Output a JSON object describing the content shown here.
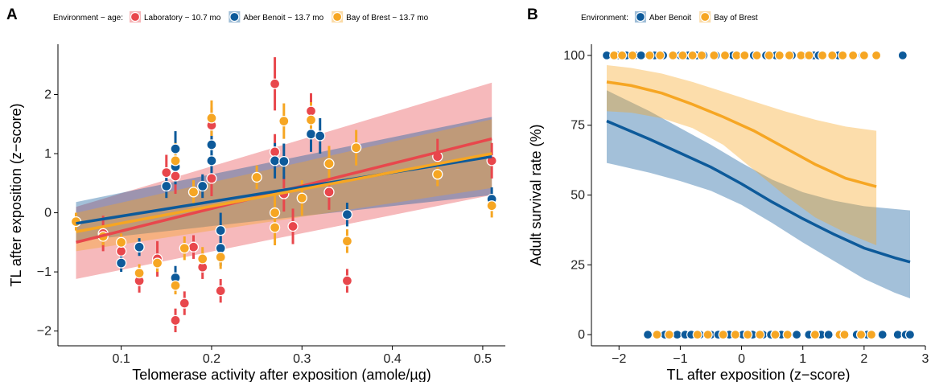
{
  "chart_data": [
    {
      "panel": "A",
      "type": "scatter",
      "xlabel": "Telomerase activity after exposition (amole/µg)",
      "ylabel": "TL after exposition (z−score)",
      "xlim": [
        0.03,
        0.525
      ],
      "ylim": [
        -2.25,
        2.85
      ],
      "xticks": [
        "0.1",
        "0.2",
        "0.3",
        "0.4",
        "0.5"
      ],
      "xtick_values": [
        0.1,
        0.2,
        0.3,
        0.4,
        0.5
      ],
      "yticks": [
        "−2",
        "−1",
        "0",
        "1",
        "2"
      ],
      "ytick_values": [
        -2,
        -1,
        0,
        1,
        2
      ],
      "grid": false,
      "legend": {
        "title": "Environment − age:",
        "placement": "top",
        "entries": [
          "Laboratory − 10.7 mo",
          "Aber Benoit − 13.7 mo",
          "Bay of Brest − 13.7 mo"
        ]
      },
      "series": [
        {
          "name": "Laboratory − 10.7 mo",
          "color": "#e8474c",
          "points": [
            {
              "x": 0.08,
              "y": -0.35,
              "e": 0.3
            },
            {
              "x": 0.1,
              "y": -0.65,
              "e": 0.3
            },
            {
              "x": 0.12,
              "y": -1.15,
              "e": 0.2
            },
            {
              "x": 0.14,
              "y": -0.78,
              "e": 0.3
            },
            {
              "x": 0.15,
              "y": 0.68,
              "e": 0.3
            },
            {
              "x": 0.16,
              "y": -1.82,
              "e": 0.2
            },
            {
              "x": 0.16,
              "y": 0.62,
              "e": 0.3
            },
            {
              "x": 0.17,
              "y": -1.53,
              "e": 0.2
            },
            {
              "x": 0.18,
              "y": -0.58,
              "e": 0.2
            },
            {
              "x": 0.19,
              "y": -0.92,
              "e": 0.2
            },
            {
              "x": 0.2,
              "y": 1.48,
              "e": 0.3
            },
            {
              "x": 0.2,
              "y": 0.58,
              "e": 0.3
            },
            {
              "x": 0.21,
              "y": -1.32,
              "e": 0.2
            },
            {
              "x": 0.27,
              "y": 2.18,
              "e": 0.45
            },
            {
              "x": 0.27,
              "y": 1.03,
              "e": 0.3
            },
            {
              "x": 0.28,
              "y": 0.32,
              "e": 0.3
            },
            {
              "x": 0.29,
              "y": -0.23,
              "e": 0.3
            },
            {
              "x": 0.31,
              "y": 1.72,
              "e": 0.3
            },
            {
              "x": 0.33,
              "y": 0.35,
              "e": 0.3
            },
            {
              "x": 0.35,
              "y": -1.15,
              "e": 0.2
            },
            {
              "x": 0.45,
              "y": 0.95,
              "e": 0.3
            },
            {
              "x": 0.51,
              "y": 0.88,
              "e": 0.3
            }
          ],
          "fit": {
            "x": [
              0.05,
              0.51
            ],
            "y": [
              -0.5,
              1.25
            ],
            "lower": [
              -1.12,
              0.3
            ],
            "upper": [
              0.1,
              2.2
            ]
          }
        },
        {
          "name": "Aber Benoit − 13.7 mo",
          "color": "#0d5a9a",
          "points": [
            {
              "x": 0.1,
              "y": -0.85,
              "e": 0.15
            },
            {
              "x": 0.12,
              "y": -0.58,
              "e": 0.15
            },
            {
              "x": 0.15,
              "y": 0.45,
              "e": 0.2
            },
            {
              "x": 0.16,
              "y": 1.08,
              "e": 0.3
            },
            {
              "x": 0.16,
              "y": 0.78,
              "e": 0.3
            },
            {
              "x": 0.16,
              "y": -1.1,
              "e": 0.2
            },
            {
              "x": 0.19,
              "y": 0.45,
              "e": 0.2
            },
            {
              "x": 0.2,
              "y": 1.15,
              "e": 0.3
            },
            {
              "x": 0.2,
              "y": 0.88,
              "e": 0.3
            },
            {
              "x": 0.21,
              "y": -0.3,
              "e": 0.3
            },
            {
              "x": 0.21,
              "y": -0.6,
              "e": 0.3
            },
            {
              "x": 0.27,
              "y": 0.88,
              "e": 0.3
            },
            {
              "x": 0.28,
              "y": 0.87,
              "e": 0.3
            },
            {
              "x": 0.31,
              "y": 1.33,
              "e": 0.3
            },
            {
              "x": 0.32,
              "y": 1.3,
              "e": 0.3
            },
            {
              "x": 0.35,
              "y": -0.03,
              "e": 0.2
            },
            {
              "x": 0.51,
              "y": 0.23,
              "e": 0.2
            }
          ],
          "fit": {
            "x": [
              0.05,
              0.51
            ],
            "y": [
              -0.18,
              0.95
            ],
            "lower": [
              -0.48,
              0.3
            ],
            "upper": [
              0.18,
              1.62
            ]
          }
        },
        {
          "name": "Bay of Brest − 13.7 mo",
          "color": "#f6a623",
          "points": [
            {
              "x": 0.05,
              "y": -0.15,
              "e": 0.15
            },
            {
              "x": 0.08,
              "y": -0.4,
              "e": 0.15
            },
            {
              "x": 0.1,
              "y": -0.5,
              "e": 0.15
            },
            {
              "x": 0.12,
              "y": -1.02,
              "e": 0.15
            },
            {
              "x": 0.14,
              "y": -0.85,
              "e": 0.15
            },
            {
              "x": 0.16,
              "y": -1.23,
              "e": 0.15
            },
            {
              "x": 0.16,
              "y": 0.88,
              "e": 0.3
            },
            {
              "x": 0.17,
              "y": -0.6,
              "e": 0.2
            },
            {
              "x": 0.18,
              "y": 0.35,
              "e": 0.2
            },
            {
              "x": 0.19,
              "y": -0.78,
              "e": 0.2
            },
            {
              "x": 0.2,
              "y": 1.6,
              "e": 0.3
            },
            {
              "x": 0.21,
              "y": -0.75,
              "e": 0.2
            },
            {
              "x": 0.25,
              "y": 0.6,
              "e": 0.2
            },
            {
              "x": 0.27,
              "y": 0.0,
              "e": 0.3
            },
            {
              "x": 0.27,
              "y": -0.25,
              "e": 0.3
            },
            {
              "x": 0.28,
              "y": 1.55,
              "e": 0.3
            },
            {
              "x": 0.3,
              "y": 0.25,
              "e": 0.3
            },
            {
              "x": 0.31,
              "y": 1.57,
              "e": 0.3
            },
            {
              "x": 0.33,
              "y": 0.83,
              "e": 0.3
            },
            {
              "x": 0.35,
              "y": -0.48,
              "e": 0.2
            },
            {
              "x": 0.36,
              "y": 1.1,
              "e": 0.3
            },
            {
              "x": 0.45,
              "y": 0.65,
              "e": 0.2
            },
            {
              "x": 0.51,
              "y": 0.12,
              "e": 0.2
            }
          ],
          "fit": {
            "x": [
              0.05,
              0.51
            ],
            "y": [
              -0.32,
              1.0
            ],
            "lower": [
              -0.65,
              0.42
            ],
            "upper": [
              0.0,
              1.58
            ]
          }
        }
      ]
    },
    {
      "panel": "B",
      "type": "line",
      "xlabel": "TL after exposition (z−score)",
      "ylabel": "Adult survival rate (%)",
      "xlim": [
        -2.45,
        3.0
      ],
      "ylim": [
        -4,
        104
      ],
      "xticks": [
        "−2",
        "−1",
        "0",
        "1",
        "2",
        "3"
      ],
      "xtick_values": [
        -2,
        -1,
        0,
        1,
        2,
        3
      ],
      "yticks": [
        "0",
        "25",
        "50",
        "75",
        "100"
      ],
      "ytick_values": [
        0,
        25,
        50,
        75,
        100
      ],
      "grid": false,
      "legend": {
        "title": "Environment:",
        "placement": "top",
        "entries": [
          "Aber Benoit",
          "Bay of Brest"
        ]
      },
      "series": [
        {
          "name": "Aber Benoit",
          "color": "#0d5a9a",
          "curve": {
            "x": [
              -2.2,
              -1.5,
              -1.0,
              -0.5,
              0.0,
              0.5,
              1.0,
              1.5,
              2.0,
              2.5,
              2.75
            ],
            "y": [
              76.5,
              70,
              65,
              60,
              54,
              47.5,
              41.5,
              36,
              31,
              27.5,
              26
            ],
            "lower": [
              61.5,
              58,
              55,
              51.5,
              46.5,
              40,
              33,
              26.5,
              20,
              15,
              13
            ],
            "upper": [
              87.5,
              80,
              74,
              68,
              61.5,
              55.5,
              51,
              48,
              46,
              45,
              44.5
            ]
          },
          "survived_x": [
            -2.2,
            -2.0,
            -1.88,
            -1.74,
            -1.64,
            -1.42,
            -1.28,
            -1.0,
            -0.87,
            -0.73,
            -0.62,
            -0.42,
            -0.25,
            -0.14,
            0.05,
            0.2,
            0.4,
            0.56,
            0.82,
            1.0,
            1.18,
            1.26,
            1.58,
            1.98,
            2.63
          ],
          "died_x": [
            -1.53,
            -1.25,
            -1.05,
            -0.92,
            -0.82,
            -0.68,
            -0.5,
            -0.38,
            -0.2,
            0.02,
            0.18,
            0.35,
            0.48,
            0.65,
            0.9,
            1.1,
            1.3,
            1.42,
            1.88,
            2.05,
            2.3,
            2.55,
            2.68,
            2.75
          ]
        },
        {
          "name": "Bay of Brest",
          "color": "#f6a623",
          "curve": {
            "x": [
              -2.2,
              -1.8,
              -1.3,
              -0.8,
              -0.3,
              0.2,
              0.7,
              1.2,
              1.7,
              2.2
            ],
            "y": [
              90.5,
              89.2,
              86.5,
              82.5,
              78,
              73,
              67,
              61,
              56,
              53
            ],
            "lower": [
              80,
              79.5,
              77.5,
              74,
              68,
              59,
              50,
              42,
              36.5,
              32
            ],
            "upper": [
              96.5,
              95.5,
              93.5,
              90.5,
              87,
              83.5,
              80,
              77,
              74.5,
              73
            ]
          },
          "survived_x": [
            -2.08,
            -1.95,
            -1.78,
            -1.5,
            -1.33,
            -1.12,
            -0.96,
            -0.8,
            -0.65,
            -0.45,
            -0.27,
            -0.08,
            0.05,
            0.25,
            0.45,
            0.62,
            0.78,
            0.97,
            1.1,
            1.32,
            1.48,
            1.65,
            1.82,
            2.0,
            2.2
          ],
          "died_x": [
            -1.38,
            -1.18,
            -0.72,
            -0.55,
            -0.3,
            -0.1,
            0.1,
            0.3,
            0.55,
            0.75,
            1.2,
            1.6,
            1.68,
            1.95,
            2.12
          ]
        }
      ]
    }
  ],
  "panel_a_letter": "A",
  "panel_b_letter": "B"
}
